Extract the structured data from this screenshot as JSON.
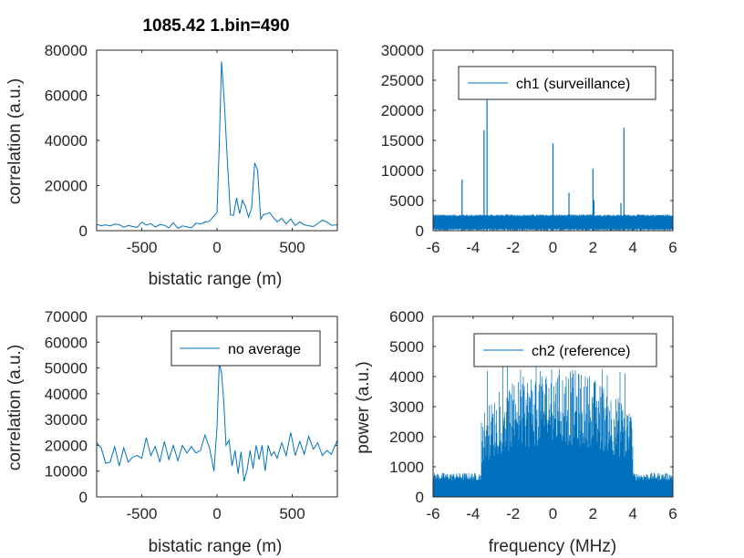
{
  "chart_data": [
    {
      "type": "line",
      "title": "1085.42 1.bin=490",
      "xlabel": "bistatic range (m)",
      "ylabel": "correlation (a.u.)",
      "xlim": [
        -800,
        800
      ],
      "ylim": [
        0,
        80000
      ],
      "xticks": [
        -500,
        0,
        500
      ],
      "yticks": [
        0,
        20000,
        40000,
        60000,
        80000
      ],
      "grid": false,
      "color": "#0072bd",
      "series": [
        {
          "x": [
            -800,
            -770,
            -740,
            -710,
            -680,
            -650,
            -620,
            -590,
            -560,
            -530,
            -500,
            -470,
            -440,
            -410,
            -380,
            -350,
            -320,
            -290,
            -260,
            -230,
            -200,
            -170,
            -140,
            -110,
            -80,
            -50,
            -20,
            0,
            15,
            30,
            50,
            70,
            90,
            110,
            130,
            150,
            170,
            190,
            210,
            230,
            250,
            270,
            290,
            310,
            330,
            350,
            370,
            400,
            430,
            460,
            490,
            520,
            550,
            580,
            610,
            640,
            670,
            700,
            730,
            760,
            800
          ],
          "y": [
            2800,
            2200,
            2600,
            2100,
            2900,
            2700,
            1500,
            2300,
            1800,
            1500,
            3800,
            2500,
            3100,
            1600,
            2700,
            2400,
            1200,
            3500,
            1000,
            2100,
            1700,
            1200,
            3300,
            3000,
            3800,
            4200,
            6500,
            8000,
            38000,
            75000,
            55000,
            30000,
            7000,
            6800,
            14500,
            7500,
            13500,
            10500,
            6000,
            10000,
            30000,
            27000,
            5000,
            7200,
            7400,
            8000,
            6200,
            3900,
            5500,
            3000,
            5200,
            2300,
            3900,
            2600,
            2200,
            1800,
            3200,
            4600,
            3900,
            2400,
            2600
          ]
        }
      ]
    },
    {
      "type": "line",
      "title": "",
      "xlabel": "",
      "ylabel": "",
      "xlim": [
        -6,
        6
      ],
      "ylim": [
        0,
        30000
      ],
      "xticks": [
        -6,
        -4,
        -2,
        0,
        2,
        4,
        6
      ],
      "yticks": [
        0,
        5000,
        10000,
        15000,
        20000,
        25000,
        30000
      ],
      "grid": false,
      "color": "#0072bd",
      "legend": {
        "entries": [
          "ch1 (surveillance)"
        ],
        "placement": "top-right"
      },
      "noise_floor": [
        1600,
        2400
      ],
      "spikes": [
        {
          "x": -4.55,
          "y": 8500
        },
        {
          "x": -3.45,
          "y": 16700
        },
        {
          "x": -3.3,
          "y": 22800
        },
        {
          "x": 0.0,
          "y": 14500
        },
        {
          "x": 0.8,
          "y": 6300
        },
        {
          "x": 2.0,
          "y": 10300
        },
        {
          "x": 2.05,
          "y": 5100
        },
        {
          "x": 3.4,
          "y": 4600
        },
        {
          "x": 3.55,
          "y": 17100
        }
      ]
    },
    {
      "type": "line",
      "title": "",
      "xlabel": "bistatic range (m)",
      "ylabel": "correlation (a.u.)",
      "xlim": [
        -800,
        800
      ],
      "ylim": [
        0,
        70000
      ],
      "xticks": [
        -500,
        0,
        500
      ],
      "yticks": [
        0,
        10000,
        20000,
        30000,
        40000,
        50000,
        60000,
        70000
      ],
      "grid": false,
      "color": "#0072bd",
      "legend": {
        "entries": [
          "no average"
        ],
        "placement": "top-right"
      },
      "series": [
        {
          "x": [
            -800,
            -770,
            -740,
            -710,
            -680,
            -650,
            -620,
            -590,
            -560,
            -530,
            -500,
            -470,
            -440,
            -410,
            -380,
            -350,
            -320,
            -290,
            -260,
            -230,
            -200,
            -170,
            -140,
            -110,
            -80,
            -50,
            -20,
            0,
            15,
            30,
            45,
            60,
            80,
            100,
            120,
            140,
            160,
            180,
            200,
            220,
            240,
            260,
            280,
            300,
            320,
            340,
            360,
            380,
            400,
            430,
            460,
            490,
            520,
            550,
            580,
            610,
            640,
            670,
            700,
            730,
            760,
            800
          ],
          "y": [
            21000,
            19000,
            13000,
            13500,
            19500,
            12000,
            19000,
            13500,
            15500,
            16000,
            15000,
            23000,
            16000,
            19500,
            13500,
            21500,
            14500,
            20000,
            14000,
            20000,
            17000,
            19500,
            17000,
            18000,
            24000,
            19000,
            10000,
            27000,
            52000,
            48000,
            37000,
            20000,
            22000,
            12000,
            18000,
            9000,
            17500,
            6000,
            10500,
            18000,
            11000,
            20000,
            14500,
            20000,
            10000,
            20000,
            16000,
            17500,
            15000,
            21000,
            16000,
            25000,
            16000,
            21500,
            16500,
            23500,
            18500,
            21000,
            16000,
            18000,
            16500,
            22000
          ]
        }
      ]
    },
    {
      "type": "area",
      "title": "",
      "xlabel": "frequency (MHz)",
      "ylabel": "power (a.u.)",
      "xlim": [
        -6,
        6
      ],
      "ylim": [
        0,
        6000
      ],
      "xticks": [
        -6,
        -4,
        -2,
        0,
        2,
        4,
        6
      ],
      "yticks": [
        0,
        1000,
        2000,
        3000,
        4000,
        5000,
        6000
      ],
      "grid": false,
      "color": "#0072bd",
      "legend": {
        "entries": [
          "ch2 (reference)"
        ],
        "placement": "top-right"
      },
      "outband_level": [
        550,
        800
      ],
      "band_edges": [
        -3.6,
        4.0
      ],
      "inband_level": [
        1700,
        4300
      ],
      "inband_peak": 5000
    }
  ]
}
